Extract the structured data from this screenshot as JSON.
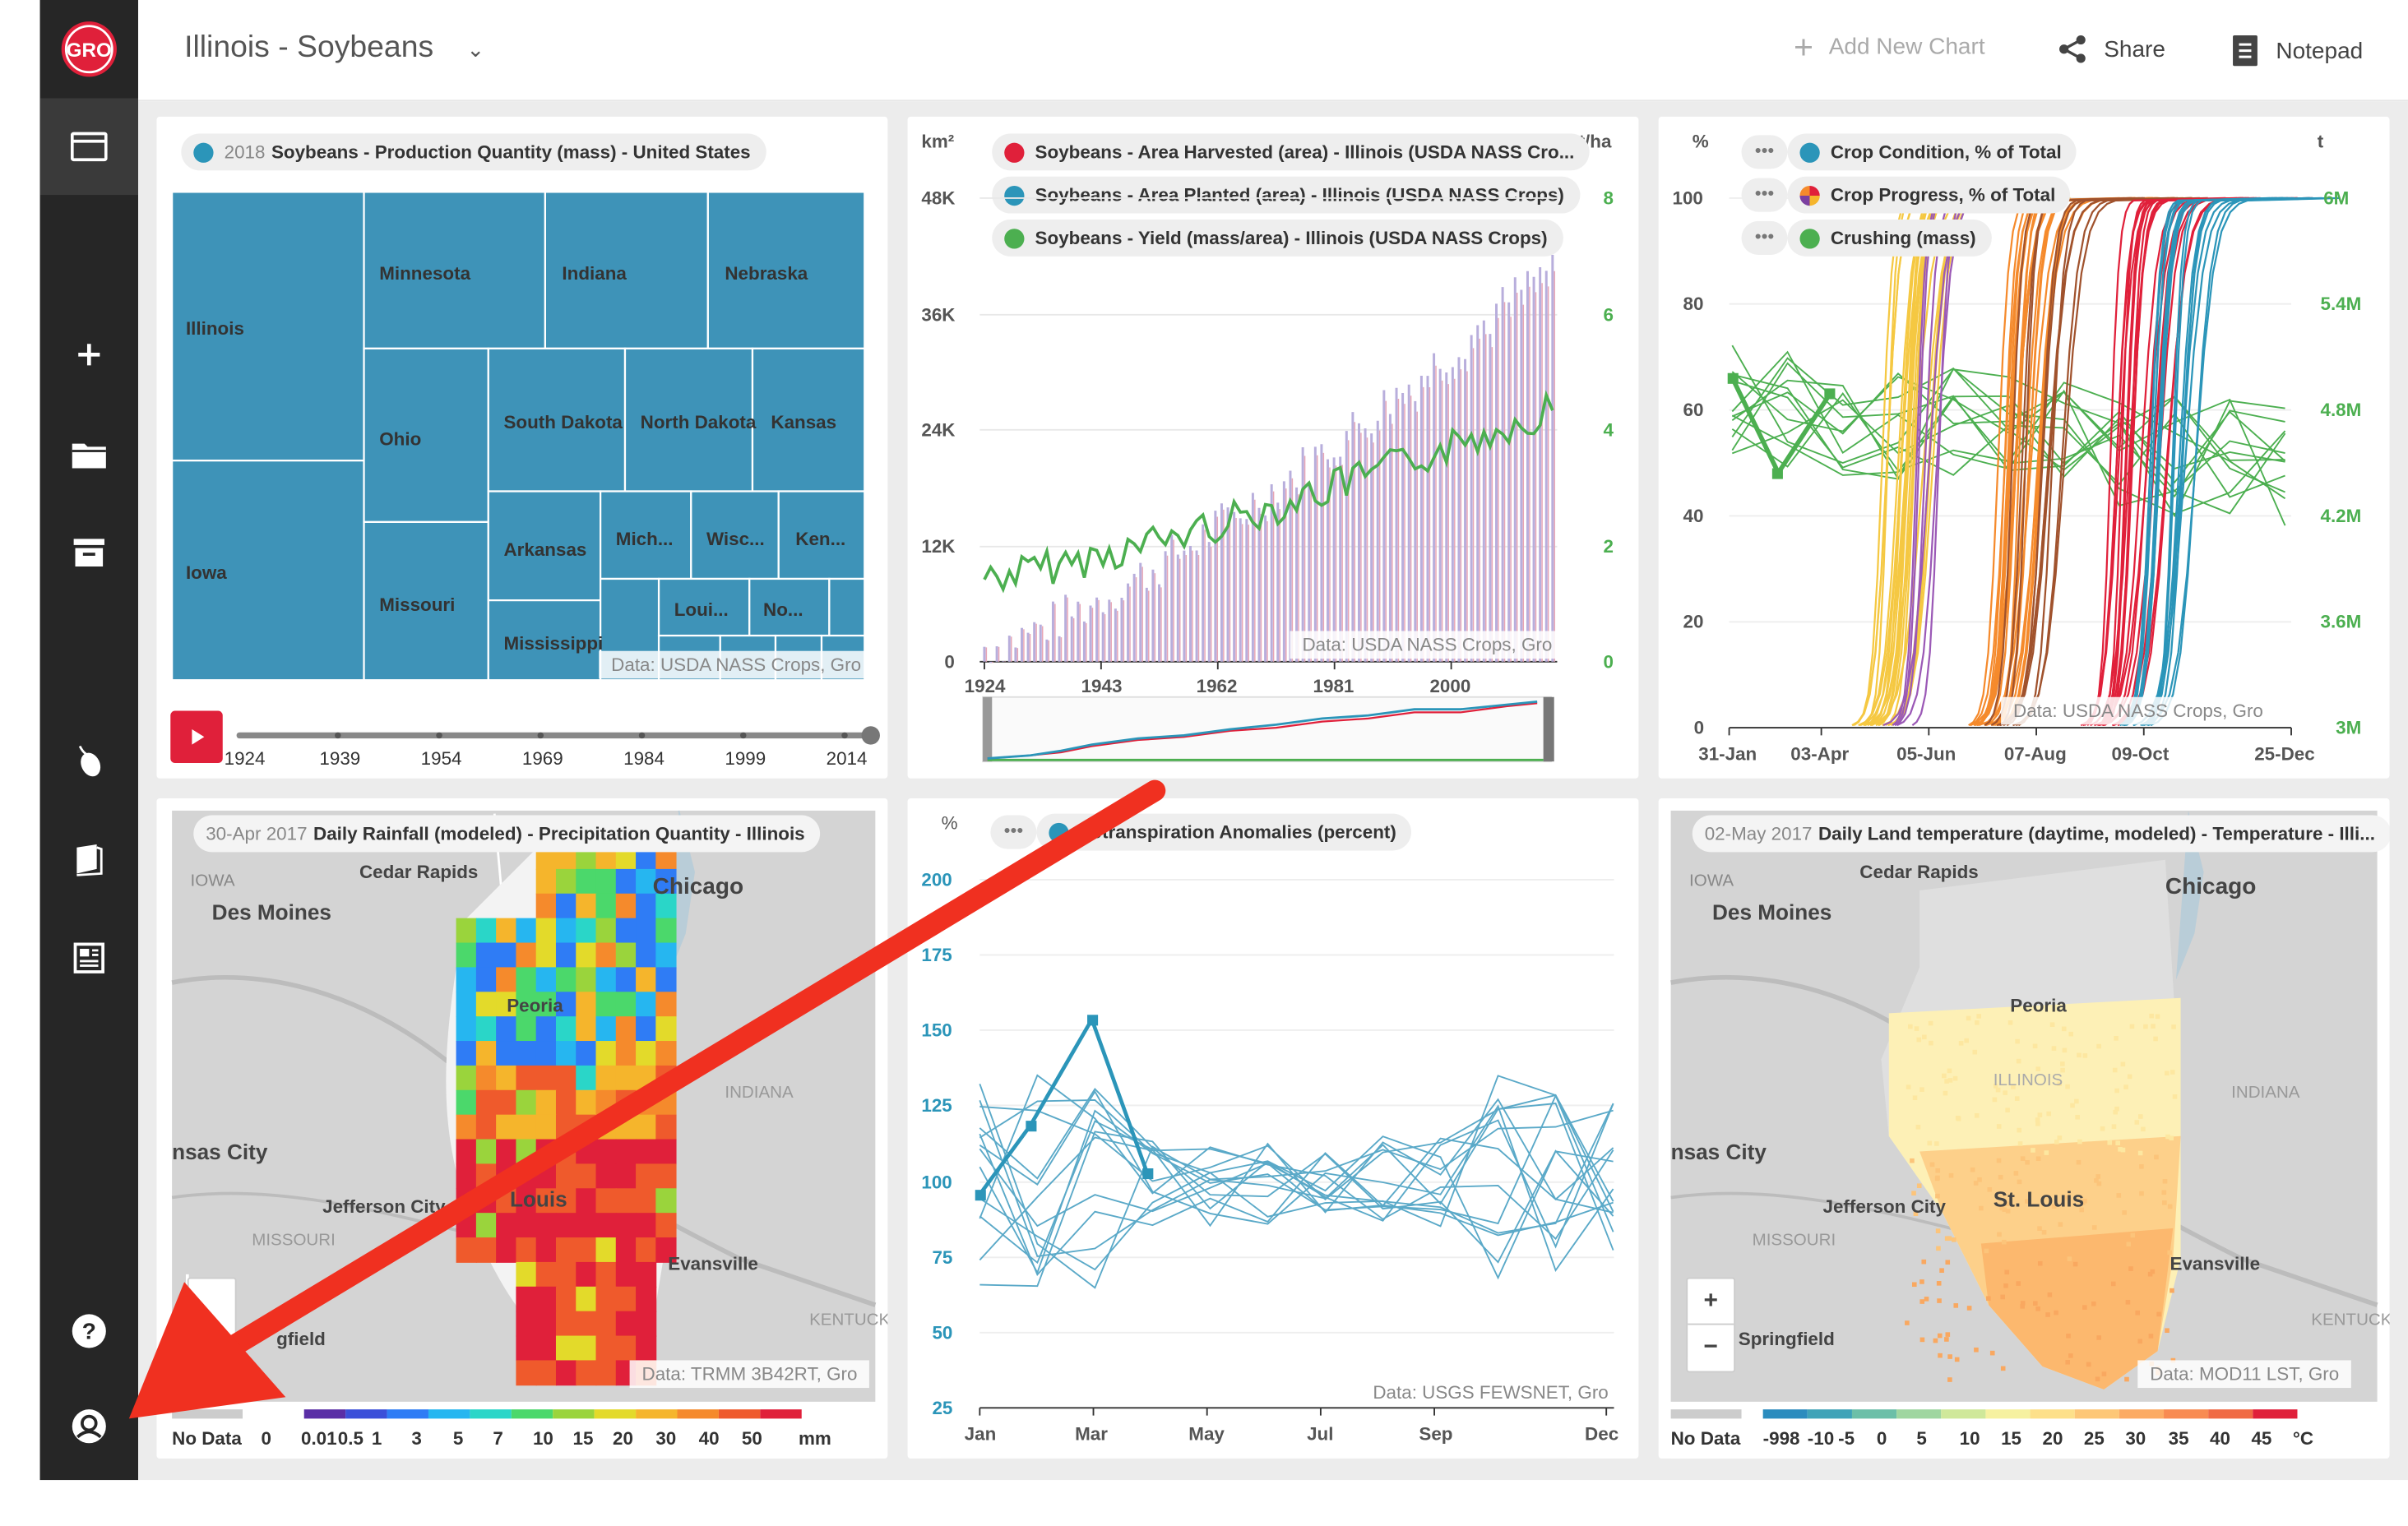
{
  "sidebar": {
    "logo": "GRO",
    "icons": [
      "window-icon",
      "plus-icon",
      "folder-icon",
      "archive-icon",
      "mouse-icon",
      "book-icon",
      "newspaper-icon",
      "help-icon",
      "user-icon"
    ]
  },
  "topbar": {
    "title": "Illinois - Soybeans",
    "add_chart": "Add New Chart",
    "share": "Share",
    "notepad": "Notepad"
  },
  "colors": {
    "accent_blue": "#2b95b9",
    "red": "#e0203a",
    "green": "#4caf50",
    "sidebar": "#262626",
    "arrow": "#f03020"
  },
  "treemap": {
    "chip_year": "2018",
    "chip_label": "Soybeans - Production Quantity (mass) - United States",
    "states": [
      "Illinois",
      "Iowa",
      "Minnesota",
      "Indiana",
      "Nebraska",
      "Ohio",
      "Missouri",
      "South Dakota",
      "North Dakota",
      "Kansas",
      "Arkansas",
      "Mich...",
      "Wisc...",
      "Ken...",
      "Mississippi",
      "Loui...",
      "No..."
    ],
    "credit": "Data: USDA NASS Crops, Gro",
    "slider_years": [
      "1924",
      "1939",
      "1954",
      "1969",
      "1984",
      "1999",
      "2014"
    ]
  },
  "area_chart": {
    "unit_left": "km²",
    "unit_right": "t/ha",
    "legend": [
      {
        "label": "Soybeans - Area Harvested (area) - Illinois (USDA NASS Cro...",
        "color": "#e0203a"
      },
      {
        "label": "Soybeans - Area Planted (area) - Illinois (USDA NASS Crops)",
        "color": "#2b95b9"
      },
      {
        "label": "Soybeans - Yield (mass/area) - Illinois (USDA NASS Crops)",
        "color": "#4caf50"
      }
    ],
    "left_ticks": [
      "48K",
      "36K",
      "24K",
      "12K",
      "0"
    ],
    "right_ticks": [
      "8",
      "6",
      "4",
      "2",
      "0"
    ],
    "x_ticks": [
      "1924",
      "1943",
      "1962",
      "1981",
      "2000"
    ],
    "credit": "Data: USDA NASS Crops, Gro"
  },
  "progress_chart": {
    "unit_left": "%",
    "unit_right": "t",
    "legend": [
      {
        "label": "Crop Condition, % of Total",
        "color": "#2b95b9"
      },
      {
        "label": "Crop Progress, % of Total",
        "color": "multi"
      },
      {
        "label": "Crushing (mass)",
        "color": "#4caf50"
      }
    ],
    "left_ticks": [
      "100",
      "80",
      "60",
      "40",
      "20",
      "0"
    ],
    "right_ticks": [
      "6M",
      "5.4M",
      "4.8M",
      "4.2M",
      "3.6M",
      "3M"
    ],
    "x_ticks": [
      "31-Jan",
      "03-Apr",
      "05-Jun",
      "07-Aug",
      "09-Oct",
      "25-Dec"
    ],
    "credit": "Data: USDA NASS Crops, Gro"
  },
  "rain_map": {
    "chip_date": "30-Apr 2017",
    "chip_label": "Daily Rainfall (modeled) - Precipitation Quantity - Illinois",
    "credit": "Data: TRMM 3B42RT, Gro",
    "places": [
      "IOWA",
      "Cedar Rapids",
      "Chicago",
      "Des Moines",
      "Peoria",
      "INDIANA",
      "nsas City",
      "Jefferson City",
      "Louis",
      "MISSOURI",
      "Evansville",
      "gfield",
      "KENTUCK"
    ],
    "legend_no_data": "No Data",
    "legend_values": [
      "0",
      "0.01",
      "0.5",
      "1",
      "3",
      "5",
      "7",
      "10",
      "15",
      "20",
      "30",
      "40",
      "50",
      "mm"
    ],
    "scale_colors": [
      "#5a2ea6",
      "#3b4fd9",
      "#2f7cf5",
      "#26b6f0",
      "#2ad6c8",
      "#4bd86b",
      "#9ad43c",
      "#e3da2a",
      "#f5b52c",
      "#f58a2c",
      "#ef5a2c",
      "#e0203a"
    ]
  },
  "et_chart": {
    "chip_label": "Evapotranspiration Anomalies (percent)",
    "chip_visible": "potranspiration Anomalies (percent)",
    "unit": "%",
    "y_ticks": [
      "200",
      "175",
      "150",
      "125",
      "100",
      "75",
      "50",
      "25"
    ],
    "x_ticks": [
      "Jan",
      "Mar",
      "May",
      "Jul",
      "Sep",
      "Dec"
    ],
    "credit": "Data: USGS FEWSNET, Gro"
  },
  "temp_map": {
    "chip_date": "02-May 2017",
    "chip_label": "Daily Land temperature (daytime, modeled) - Temperature - Illi...",
    "credit": "Data: MOD11 LST, Gro",
    "places": [
      "IOWA",
      "Cedar Rapids",
      "Chicago",
      "Des Moines",
      "Peoria",
      "ILLINOIS",
      "INDIANA",
      "nsas City",
      "Jefferson City",
      "St. Louis",
      "MISSOURI",
      "Evansville",
      "Springfield",
      "KENTUCK"
    ],
    "zoom_in": "+",
    "zoom_out": "−",
    "legend_no_data": "No Data",
    "legend_values": [
      "-998",
      "-10",
      "-5",
      "0",
      "5",
      "10",
      "15",
      "20",
      "25",
      "30",
      "35",
      "40",
      "45",
      "°C"
    ],
    "scale_colors": [
      "#2b8cbe",
      "#3fa3b8",
      "#6cbfa8",
      "#9fd6a0",
      "#cfe89a",
      "#f6f1a0",
      "#fde08a",
      "#fdc777",
      "#fcab64",
      "#f88b52",
      "#f06a44",
      "#e0203a"
    ]
  }
}
